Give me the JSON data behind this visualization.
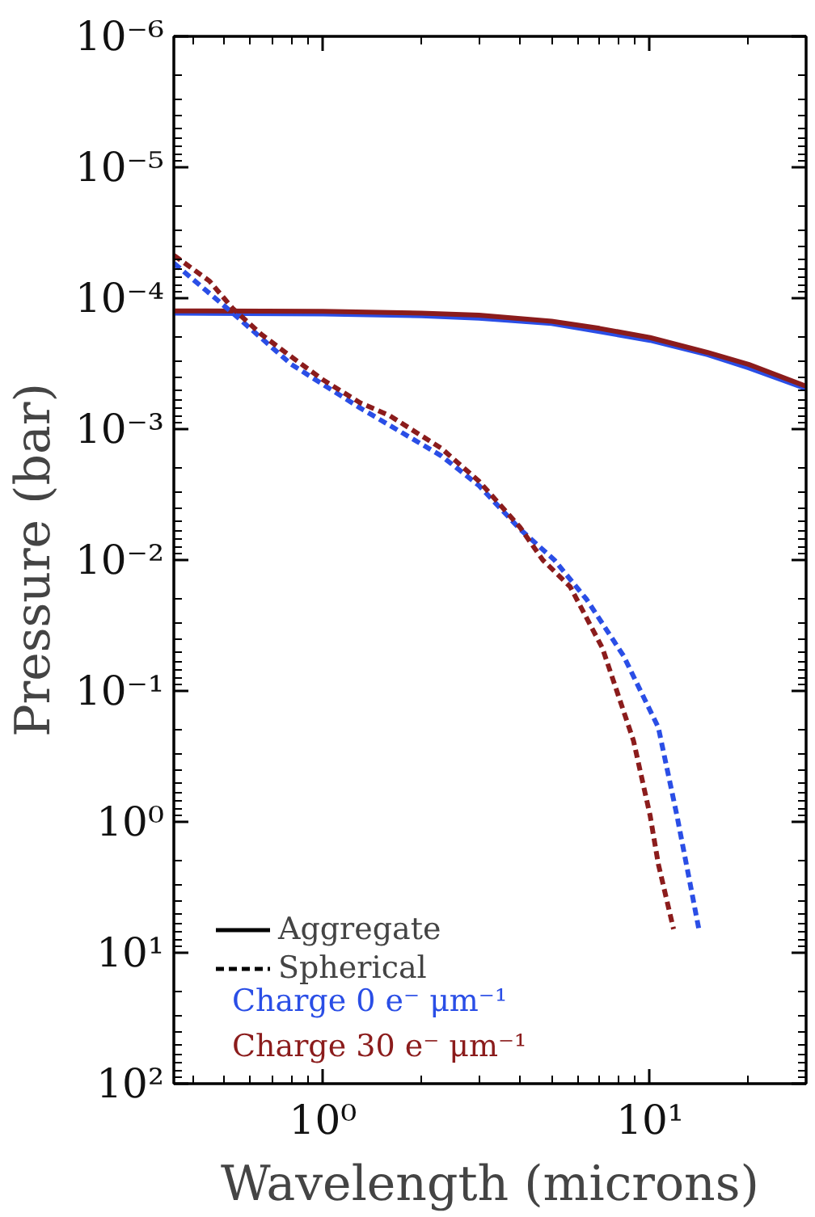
{
  "chart_data": {
    "type": "line",
    "xlabel": "Wavelength (microns)",
    "ylabel": "Pressure (bar)",
    "log": "xy",
    "grid": false,
    "xlim": [
      0.35,
      30
    ],
    "xticks": [
      {
        "value": 1,
        "label": "10⁰"
      },
      {
        "value": 10,
        "label": "10¹"
      }
    ],
    "ylim": [
      100,
      1e-06
    ],
    "yticks": [
      {
        "value": 1e-06,
        "label": "10⁻⁶"
      },
      {
        "value": 1e-05,
        "label": "10⁻⁵"
      },
      {
        "value": 0.0001,
        "label": "10⁻⁴"
      },
      {
        "value": 0.001,
        "label": "10⁻³"
      },
      {
        "value": 0.01,
        "label": "10⁻²"
      },
      {
        "value": 0.1,
        "label": "10⁻¹"
      },
      {
        "value": 1,
        "label": "10⁰"
      },
      {
        "value": 10,
        "label": "10¹"
      },
      {
        "value": 100,
        "label": "10²"
      }
    ],
    "series": [
      {
        "color": "#2a4ee6",
        "line_style": "solid",
        "x": [
          0.35,
          1,
          2,
          3,
          5,
          7,
          10,
          15,
          20,
          30
        ],
        "values": [
          0.00013,
          0.000132,
          0.000136,
          0.000142,
          0.000156,
          0.00018,
          0.00021,
          0.00027,
          0.00034,
          0.00049
        ]
      },
      {
        "color": "#8b1c1c",
        "line_style": "solid",
        "x": [
          0.35,
          1,
          2,
          3,
          5,
          7,
          10,
          15,
          20,
          30
        ],
        "values": [
          0.000125,
          0.000126,
          0.00013,
          0.000135,
          0.00015,
          0.00017,
          0.0002,
          0.00026,
          0.00032,
          0.00047
        ]
      },
      {
        "color": "#2a4ee6",
        "line_style": "dashed",
        "x": [
          0.35,
          0.53,
          0.8,
          1.3,
          2.3,
          3,
          4,
          5.1,
          6.4,
          8.3,
          10.6,
          12.1,
          13.2,
          14.1
        ],
        "values": [
          5.4e-05,
          0.00013,
          0.00032,
          0.00069,
          0.0016,
          0.0027,
          0.0058,
          0.01,
          0.02,
          0.054,
          0.19,
          0.91,
          2.8,
          6.6
        ]
      },
      {
        "color": "#8b1c1c",
        "line_style": "dashed",
        "x": [
          0.35,
          0.45,
          0.53,
          0.65,
          0.8,
          1,
          1.3,
          1.6,
          2.3,
          3,
          4,
          4.7,
          5.7,
          7.15,
          8.9,
          10,
          10.6,
          11.8
        ],
        "values": [
          4.7e-05,
          7.4e-05,
          0.00012,
          0.00019,
          0.00028,
          0.00042,
          0.00063,
          0.00079,
          0.0014,
          0.0025,
          0.0056,
          0.01,
          0.016,
          0.047,
          0.24,
          0.89,
          2.1,
          6.6
        ]
      }
    ],
    "annotations": [
      "Aggregate",
      "Spherical",
      "Charge 0 e⁻  μm⁻¹",
      "Charge 30 e⁻  μm⁻¹"
    ]
  }
}
